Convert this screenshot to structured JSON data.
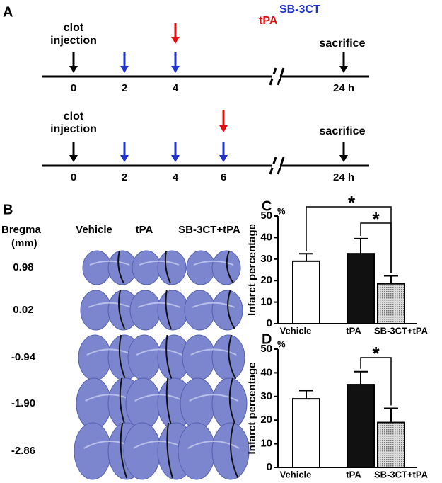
{
  "panel_a": {
    "label": "A",
    "legend": [
      "SB-3CT",
      "tPA"
    ],
    "timelines": [
      {
        "start_event": [
          "clot",
          "injection"
        ],
        "end_event": "sacrifice",
        "ticks": [
          "0",
          "2",
          "4",
          "24 h"
        ]
      },
      {
        "start_event": [
          "clot",
          "injection"
        ],
        "end_event": "sacrifice",
        "ticks": [
          "0",
          "2",
          "4",
          "6",
          "24 h"
        ]
      }
    ]
  },
  "panel_b": {
    "label": "B",
    "row_header": [
      "Bregma",
      "(mm)"
    ],
    "columns": [
      "Vehicle",
      "tPA",
      "SB-3CT+tPA"
    ],
    "rows": [
      "0.98",
      "0.02",
      "-0.94",
      "-1.90",
      "-2.86"
    ]
  },
  "chart_data": [
    {
      "type": "bar",
      "panel": "C",
      "ylabel": "Infarct percentage",
      "yunit": "%",
      "categories": [
        "Vehicle",
        "tPA",
        "SB-3CT+tPA"
      ],
      "values": [
        29,
        32.5,
        18.5
      ],
      "errors": [
        3.5,
        7,
        3.7
      ],
      "colors": [
        "#ffffff",
        "#111111",
        "#a8a8a8"
      ],
      "ylim": [
        0,
        50
      ],
      "yticks": [
        0,
        10,
        20,
        30,
        40,
        50
      ],
      "annotations": [
        "*",
        "*"
      ]
    },
    {
      "type": "bar",
      "panel": "D",
      "ylabel": "Infarct percentage",
      "yunit": "%",
      "categories": [
        "Vehicle",
        "tPA",
        "SB-3CT+tPA"
      ],
      "values": [
        29,
        35,
        19
      ],
      "errors": [
        3.5,
        5.5,
        6
      ],
      "colors": [
        "#ffffff",
        "#111111",
        "#a8a8a8"
      ],
      "ylim": [
        0,
        50
      ],
      "yticks": [
        0,
        10,
        20,
        30,
        40,
        50
      ],
      "annotations": [
        "*"
      ]
    }
  ]
}
